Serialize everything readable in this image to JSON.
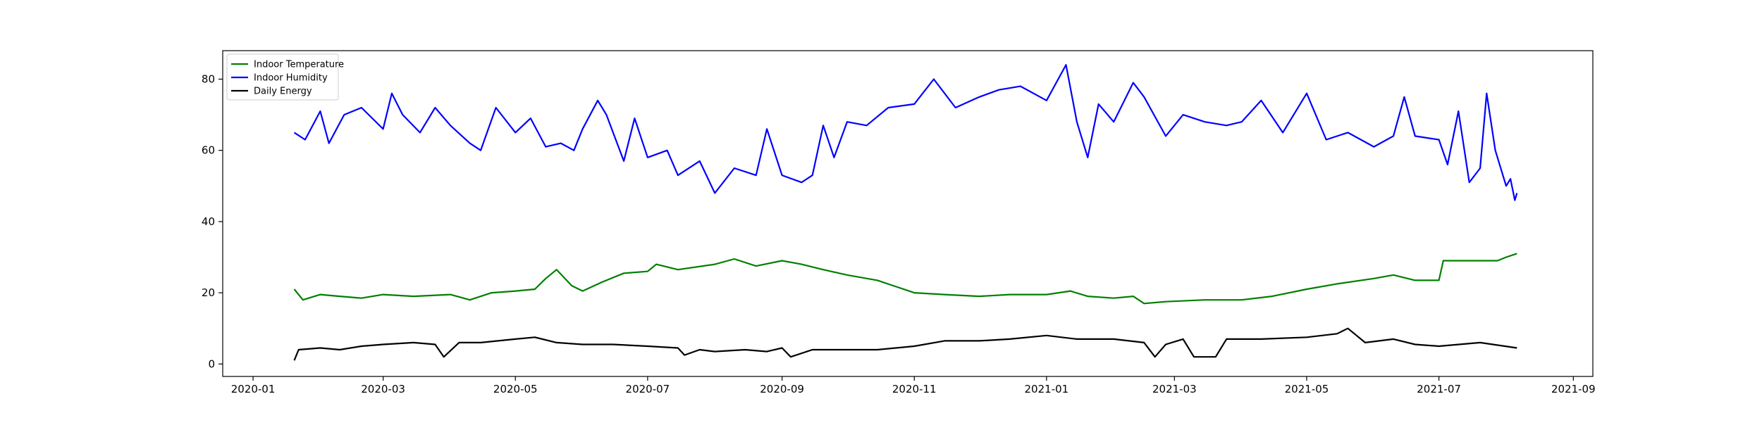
{
  "chart_data": {
    "type": "line",
    "title": "",
    "xlabel": "",
    "ylabel": "",
    "x_axis": "date",
    "xlim": [
      "2019-12-18",
      "2021-09-10"
    ],
    "ylim": [
      -3.5,
      88
    ],
    "grid": false,
    "legend_position": "top-left",
    "xticks": [
      "2020-01",
      "2020-03",
      "2020-05",
      "2020-07",
      "2020-09",
      "2020-11",
      "2021-01",
      "2021-03",
      "2021-05",
      "2021-07",
      "2021-09"
    ],
    "yticks": [
      0,
      20,
      40,
      60,
      80
    ],
    "series": [
      {
        "name": "Indoor Temperature",
        "color": "#008000",
        "points": [
          [
            "2020-01-20",
            21
          ],
          [
            "2020-01-24",
            18
          ],
          [
            "2020-02-01",
            19.5
          ],
          [
            "2020-02-10",
            19
          ],
          [
            "2020-02-20",
            18.5
          ],
          [
            "2020-03-01",
            19.5
          ],
          [
            "2020-03-15",
            19
          ],
          [
            "2020-04-01",
            19.5
          ],
          [
            "2020-04-10",
            18
          ],
          [
            "2020-04-20",
            20
          ],
          [
            "2020-05-01",
            20.5
          ],
          [
            "2020-05-10",
            21
          ],
          [
            "2020-05-15",
            24
          ],
          [
            "2020-05-20",
            26.5
          ],
          [
            "2020-05-27",
            22
          ],
          [
            "2020-06-01",
            20.5
          ],
          [
            "2020-06-10",
            23
          ],
          [
            "2020-06-20",
            25.5
          ],
          [
            "2020-07-01",
            26
          ],
          [
            "2020-07-05",
            28
          ],
          [
            "2020-07-15",
            26.5
          ],
          [
            "2020-08-01",
            28
          ],
          [
            "2020-08-10",
            29.5
          ],
          [
            "2020-08-20",
            27.5
          ],
          [
            "2020-09-01",
            29
          ],
          [
            "2020-09-10",
            28
          ],
          [
            "2020-09-20",
            26.5
          ],
          [
            "2020-10-01",
            25
          ],
          [
            "2020-10-15",
            23.5
          ],
          [
            "2020-11-01",
            20
          ],
          [
            "2020-11-15",
            19.5
          ],
          [
            "2020-12-01",
            19
          ],
          [
            "2020-12-15",
            19.5
          ],
          [
            "2021-01-01",
            19.5
          ],
          [
            "2021-01-12",
            20.5
          ],
          [
            "2021-01-20",
            19
          ],
          [
            "2021-02-01",
            18.5
          ],
          [
            "2021-02-10",
            19
          ],
          [
            "2021-02-15",
            17
          ],
          [
            "2021-02-25",
            17.5
          ],
          [
            "2021-03-15",
            18
          ],
          [
            "2021-04-01",
            18
          ],
          [
            "2021-04-15",
            19
          ],
          [
            "2021-05-01",
            21
          ],
          [
            "2021-05-15",
            22.5
          ],
          [
            "2021-06-01",
            24
          ],
          [
            "2021-06-10",
            25
          ],
          [
            "2021-06-20",
            23.5
          ],
          [
            "2021-07-01",
            23.5
          ],
          [
            "2021-07-03",
            29
          ],
          [
            "2021-07-15",
            29
          ],
          [
            "2021-07-28",
            29
          ],
          [
            "2021-08-01",
            30
          ],
          [
            "2021-08-06",
            31
          ]
        ]
      },
      {
        "name": "Indoor Humidity",
        "color": "#0000ff",
        "points": [
          [
            "2020-01-20",
            65
          ],
          [
            "2020-01-25",
            63
          ],
          [
            "2020-02-01",
            71
          ],
          [
            "2020-02-05",
            62
          ],
          [
            "2020-02-12",
            70
          ],
          [
            "2020-02-20",
            72
          ],
          [
            "2020-03-01",
            66
          ],
          [
            "2020-03-05",
            76
          ],
          [
            "2020-03-10",
            70
          ],
          [
            "2020-03-18",
            65
          ],
          [
            "2020-03-25",
            72
          ],
          [
            "2020-04-01",
            67
          ],
          [
            "2020-04-10",
            62
          ],
          [
            "2020-04-15",
            60
          ],
          [
            "2020-04-22",
            72
          ],
          [
            "2020-05-01",
            65
          ],
          [
            "2020-05-08",
            69
          ],
          [
            "2020-05-15",
            61
          ],
          [
            "2020-05-22",
            62
          ],
          [
            "2020-05-28",
            60
          ],
          [
            "2020-06-01",
            66
          ],
          [
            "2020-06-08",
            74
          ],
          [
            "2020-06-12",
            70
          ],
          [
            "2020-06-20",
            57
          ],
          [
            "2020-06-25",
            69
          ],
          [
            "2020-07-01",
            58
          ],
          [
            "2020-07-10",
            60
          ],
          [
            "2020-07-15",
            53
          ],
          [
            "2020-07-25",
            57
          ],
          [
            "2020-08-01",
            48
          ],
          [
            "2020-08-10",
            55
          ],
          [
            "2020-08-20",
            53
          ],
          [
            "2020-08-25",
            66
          ],
          [
            "2020-09-01",
            53
          ],
          [
            "2020-09-10",
            51
          ],
          [
            "2020-09-15",
            53
          ],
          [
            "2020-09-20",
            67
          ],
          [
            "2020-09-25",
            58
          ],
          [
            "2020-10-01",
            68
          ],
          [
            "2020-10-10",
            67
          ],
          [
            "2020-10-20",
            72
          ],
          [
            "2020-11-01",
            73
          ],
          [
            "2020-11-10",
            80
          ],
          [
            "2020-11-20",
            72
          ],
          [
            "2020-12-01",
            75
          ],
          [
            "2020-12-10",
            77
          ],
          [
            "2020-12-20",
            78
          ],
          [
            "2021-01-01",
            74
          ],
          [
            "2021-01-10",
            84
          ],
          [
            "2021-01-15",
            68
          ],
          [
            "2021-01-20",
            58
          ],
          [
            "2021-01-25",
            73
          ],
          [
            "2021-02-01",
            68
          ],
          [
            "2021-02-10",
            79
          ],
          [
            "2021-02-15",
            75
          ],
          [
            "2021-02-25",
            64
          ],
          [
            "2021-03-05",
            70
          ],
          [
            "2021-03-15",
            68
          ],
          [
            "2021-03-25",
            67
          ],
          [
            "2021-04-01",
            68
          ],
          [
            "2021-04-10",
            74
          ],
          [
            "2021-04-20",
            65
          ],
          [
            "2021-05-01",
            76
          ],
          [
            "2021-05-10",
            63
          ],
          [
            "2021-05-20",
            65
          ],
          [
            "2021-06-01",
            61
          ],
          [
            "2021-06-10",
            64
          ],
          [
            "2021-06-15",
            75
          ],
          [
            "2021-06-20",
            64
          ],
          [
            "2021-07-01",
            63
          ],
          [
            "2021-07-05",
            56
          ],
          [
            "2021-07-10",
            71
          ],
          [
            "2021-07-15",
            51
          ],
          [
            "2021-07-20",
            55
          ],
          [
            "2021-07-23",
            76
          ],
          [
            "2021-07-27",
            60
          ],
          [
            "2021-08-01",
            50
          ],
          [
            "2021-08-03",
            52
          ],
          [
            "2021-08-05",
            46
          ],
          [
            "2021-08-06",
            48
          ]
        ]
      },
      {
        "name": "Daily Energy",
        "color": "#000000",
        "points": [
          [
            "2020-01-20",
            1
          ],
          [
            "2020-01-22",
            4
          ],
          [
            "2020-02-01",
            4.5
          ],
          [
            "2020-02-10",
            4
          ],
          [
            "2020-02-20",
            5
          ],
          [
            "2020-03-01",
            5.5
          ],
          [
            "2020-03-15",
            6
          ],
          [
            "2020-03-25",
            5.5
          ],
          [
            "2020-03-29",
            2
          ],
          [
            "2020-04-05",
            6
          ],
          [
            "2020-04-15",
            6
          ],
          [
            "2020-05-01",
            7
          ],
          [
            "2020-05-10",
            7.5
          ],
          [
            "2020-05-20",
            6
          ],
          [
            "2020-06-01",
            5.5
          ],
          [
            "2020-06-15",
            5.5
          ],
          [
            "2020-07-01",
            5
          ],
          [
            "2020-07-15",
            4.5
          ],
          [
            "2020-07-18",
            2.5
          ],
          [
            "2020-07-25",
            4
          ],
          [
            "2020-08-01",
            3.5
          ],
          [
            "2020-08-15",
            4
          ],
          [
            "2020-08-25",
            3.5
          ],
          [
            "2020-09-01",
            4.5
          ],
          [
            "2020-09-05",
            2
          ],
          [
            "2020-09-15",
            4
          ],
          [
            "2020-10-01",
            4
          ],
          [
            "2020-10-15",
            4
          ],
          [
            "2020-11-01",
            5
          ],
          [
            "2020-11-15",
            6.5
          ],
          [
            "2020-12-01",
            6.5
          ],
          [
            "2020-12-15",
            7
          ],
          [
            "2021-01-01",
            8
          ],
          [
            "2021-01-15",
            7
          ],
          [
            "2021-02-01",
            7
          ],
          [
            "2021-02-15",
            6
          ],
          [
            "2021-02-20",
            2
          ],
          [
            "2021-02-25",
            5.5
          ],
          [
            "2021-03-05",
            7
          ],
          [
            "2021-03-10",
            2
          ],
          [
            "2021-03-20",
            2
          ],
          [
            "2021-03-25",
            7
          ],
          [
            "2021-04-10",
            7
          ],
          [
            "2021-05-01",
            7.5
          ],
          [
            "2021-05-15",
            8.5
          ],
          [
            "2021-05-20",
            10
          ],
          [
            "2021-05-28",
            6
          ],
          [
            "2021-06-10",
            7
          ],
          [
            "2021-06-20",
            5.5
          ],
          [
            "2021-07-01",
            5
          ],
          [
            "2021-07-20",
            6
          ],
          [
            "2021-08-06",
            4.5
          ]
        ]
      }
    ]
  }
}
